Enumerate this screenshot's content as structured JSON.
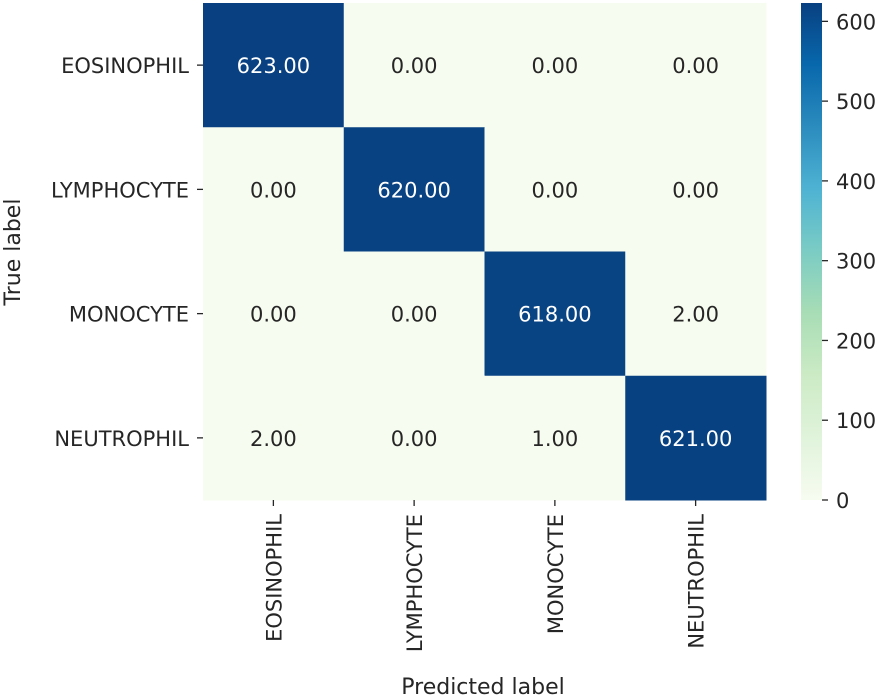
{
  "chart_data": {
    "type": "heatmap",
    "title": "",
    "xlabel": "Predicted label",
    "ylabel": "True label",
    "x_categories": [
      "EOSINOPHIL",
      "LYMPHOCYTE",
      "MONOCYTE",
      "NEUTROPHIL"
    ],
    "y_categories": [
      "EOSINOPHIL",
      "LYMPHOCYTE",
      "MONOCYTE",
      "NEUTROPHIL"
    ],
    "values": [
      [
        623,
        0,
        0,
        0
      ],
      [
        0,
        620,
        0,
        0
      ],
      [
        0,
        0,
        618,
        2
      ],
      [
        2,
        0,
        1,
        621
      ]
    ],
    "value_format": "2 decimals",
    "colormap": "GnBu",
    "colorbar": {
      "range": [
        0,
        623
      ],
      "ticks": [
        0,
        100,
        200,
        300,
        400,
        500,
        600
      ]
    },
    "colors": {
      "low": "#f7fcf0",
      "high": "#084081",
      "text_light": "#ffffff",
      "text_dark": "#262626"
    }
  }
}
